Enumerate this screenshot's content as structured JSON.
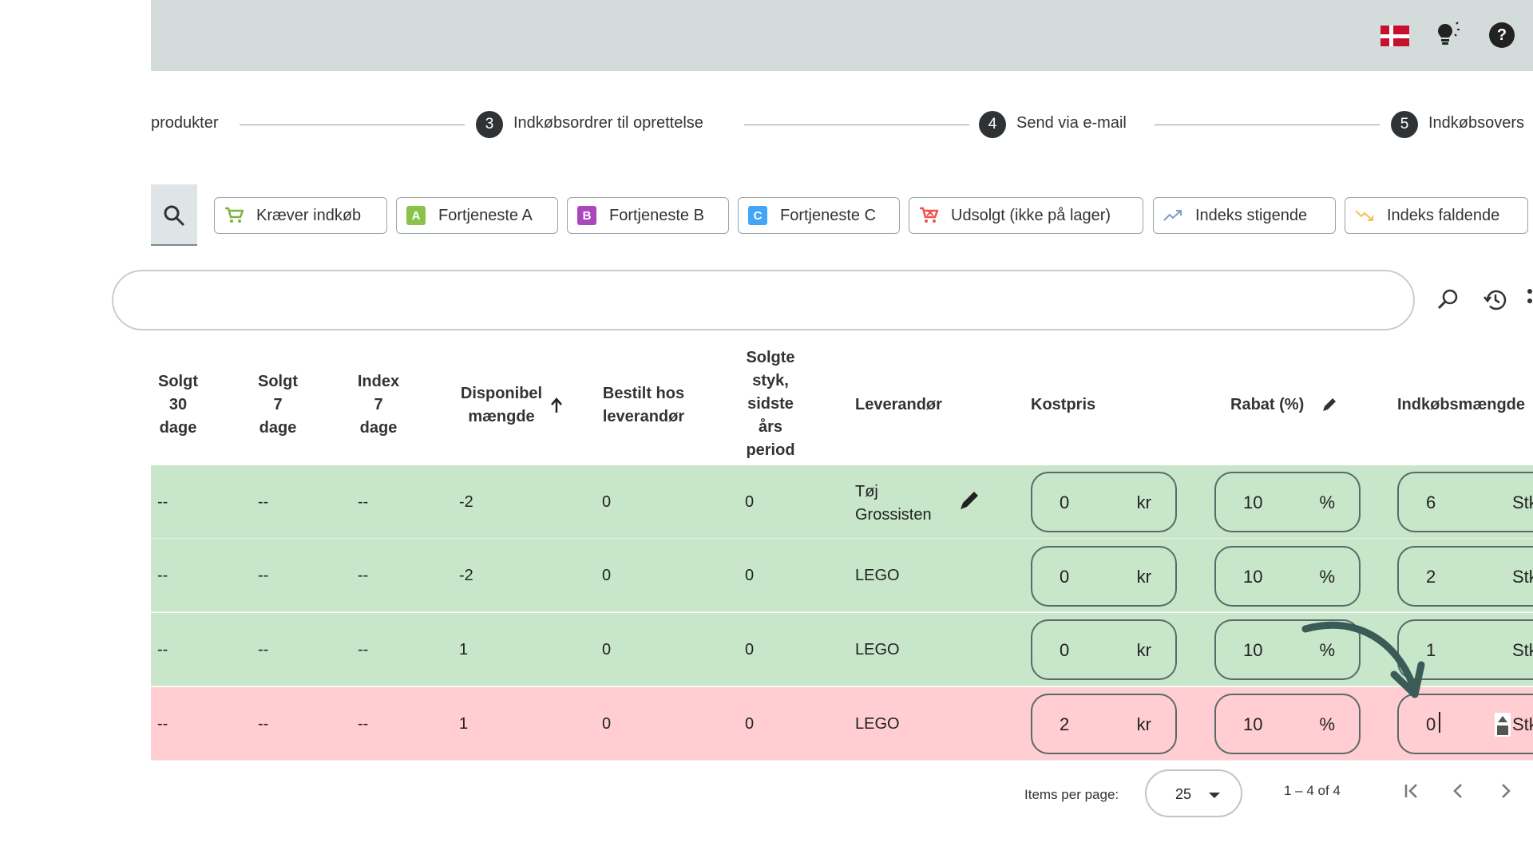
{
  "topbar": {
    "language_flag": "danish-flag",
    "flag_colors": {
      "red": "#c8102e",
      "white": "#ffffff"
    },
    "bulb_icon": "lightbulb-icon",
    "help_symbol": "?"
  },
  "stepper": {
    "steps": [
      {
        "label": "produkter"
      },
      {
        "number": "3",
        "label": "Indkøbsordrer til oprettelse"
      },
      {
        "number": "4",
        "label": "Send via e-mail"
      },
      {
        "number": "5",
        "label": "Indkøbsovers"
      }
    ]
  },
  "filters": {
    "chips": [
      {
        "label": "Kræver indkøb",
        "icon": "cart-icon"
      },
      {
        "label": "Fortjeneste A",
        "badge": "A",
        "color": "#8bc34a"
      },
      {
        "label": "Fortjeneste B",
        "badge": "B",
        "color": "#ab47bc"
      },
      {
        "label": "Fortjeneste C",
        "badge": "C",
        "color": "#42a5f5"
      },
      {
        "label": "Udsolgt (ikke på lager)",
        "icon": "cart-empty-icon"
      },
      {
        "label": "Indeks stigende",
        "icon": "trending-up-icon"
      },
      {
        "label": "Indeks faldende",
        "icon": "trending-down-icon"
      }
    ]
  },
  "table": {
    "headers": {
      "solgt30": [
        "Solgt",
        "30",
        "dage"
      ],
      "solgt7": [
        "Solgt",
        "7",
        "dage"
      ],
      "index7": [
        "Index",
        "7",
        "dage"
      ],
      "disponibel": [
        "Disponibel",
        "mængde"
      ],
      "bestilt": [
        "Bestilt hos",
        "leverandør"
      ],
      "solgte": [
        "Solgte",
        "styk,",
        "sidste",
        "års",
        "period"
      ],
      "leverandor": "Leverandør",
      "kostpris": "Kostpris",
      "rabat": "Rabat (%)",
      "indkobsmaengde": "Indkøbsmængde"
    },
    "rows": [
      {
        "status": "green",
        "solgt30": "--",
        "solgt7": "--",
        "index7": "--",
        "disponibel": "-2",
        "bestilt": "0",
        "solgte": "0",
        "leverandor": "Tøj Grossisten",
        "leverandor_lines": [
          "Tøj",
          "Grossisten"
        ],
        "kostpris": "0",
        "kost_unit": "kr",
        "rabat": "10",
        "rabat_unit": "%",
        "maengde": "6",
        "maengde_unit": "Stk"
      },
      {
        "status": "green",
        "solgt30": "--",
        "solgt7": "--",
        "index7": "--",
        "disponibel": "-2",
        "bestilt": "0",
        "solgte": "0",
        "leverandor": "LEGO",
        "kostpris": "0",
        "kost_unit": "kr",
        "rabat": "10",
        "rabat_unit": "%",
        "maengde": "2",
        "maengde_unit": "Stk"
      },
      {
        "status": "green",
        "solgt30": "--",
        "solgt7": "--",
        "index7": "--",
        "disponibel": "1",
        "bestilt": "0",
        "solgte": "0",
        "leverandor": "LEGO",
        "kostpris": "0",
        "kost_unit": "kr",
        "rabat": "10",
        "rabat_unit": "%",
        "maengde": "1",
        "maengde_unit": "Stk"
      },
      {
        "status": "red",
        "solgt30": "--",
        "solgt7": "--",
        "index7": "--",
        "disponibel": "1",
        "bestilt": "0",
        "solgte": "0",
        "leverandor": "LEGO",
        "kostpris": "2",
        "kost_unit": "kr",
        "rabat": "10",
        "rabat_unit": "%",
        "maengde": "0",
        "maengde_unit": "Stk"
      }
    ],
    "row_colors": {
      "green": "#c8e6c9",
      "red": "#ffcdd2"
    }
  },
  "paginator": {
    "label": "Items per page:",
    "page_size": "25",
    "range": "1 – 4 of 4"
  }
}
